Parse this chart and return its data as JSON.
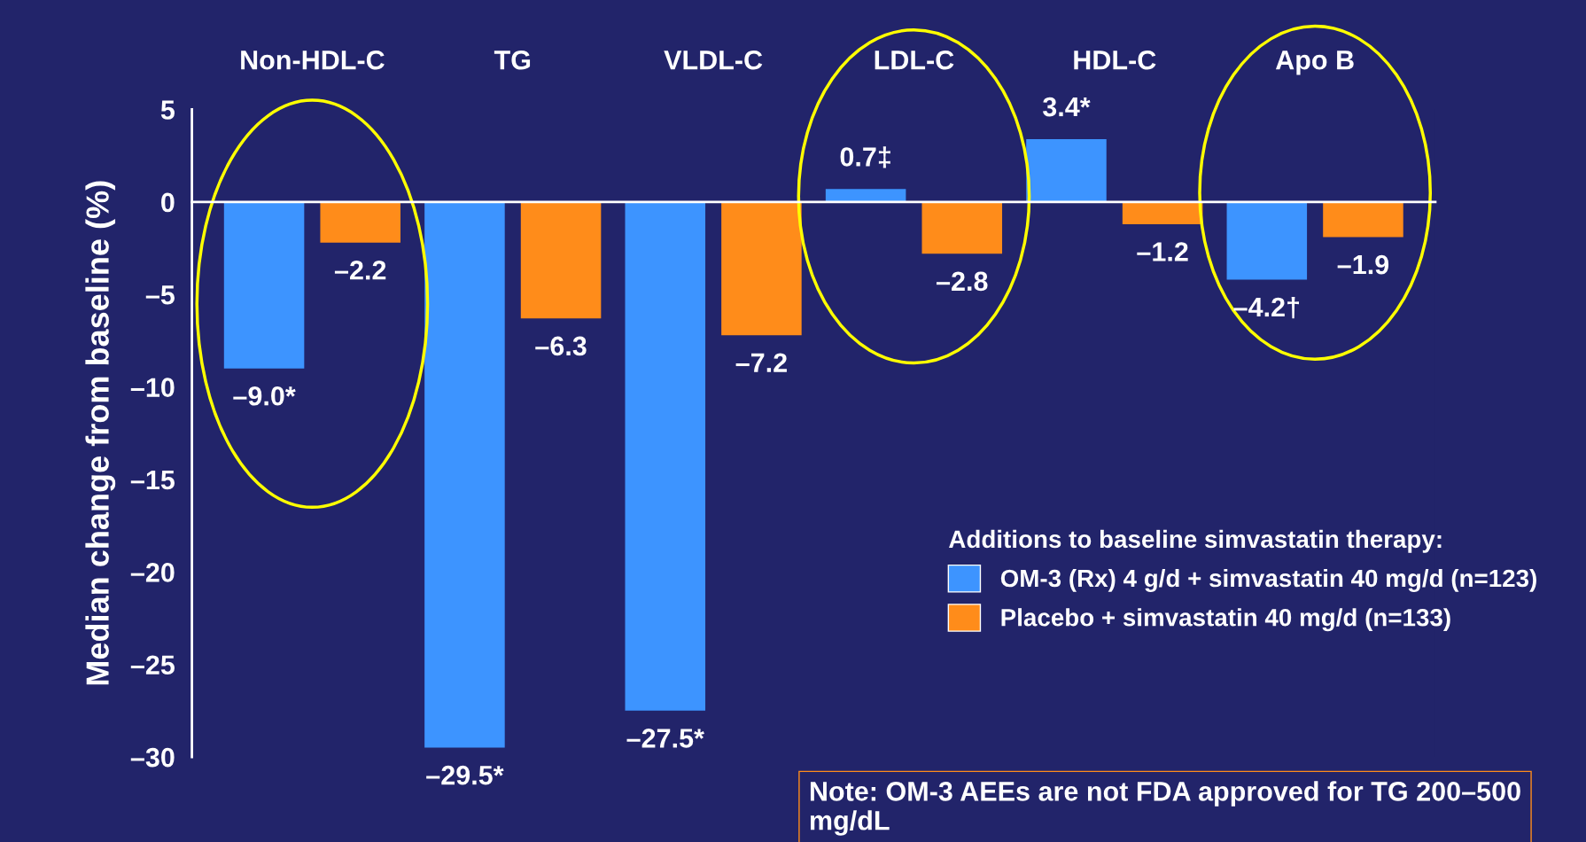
{
  "chart_data": {
    "type": "bar",
    "categories": [
      "Non-HDL-C",
      "TG",
      "VLDL-C",
      "LDL-C",
      "HDL-C",
      "Apo B"
    ],
    "ylabel": "Median change from baseline (%)",
    "legend_title": "Additions to baseline simvastatin therapy:",
    "series": [
      {
        "name": "OM-3 (Rx) 4 g/d + simvastatin 40 mg/d (n=123)",
        "color": "#3d94ff",
        "values": [
          -9.0,
          -29.5,
          -27.5,
          0.7,
          3.4,
          -4.2
        ],
        "value_labels": [
          "–9.0*",
          "–29.5*",
          "–27.5*",
          "0.7‡",
          "3.4*",
          "–4.2†"
        ]
      },
      {
        "name": "Placebo + simvastatin 40 mg/d (n=133)",
        "color": "#ff8c1a",
        "values": [
          -2.2,
          -6.3,
          -7.2,
          -2.8,
          -1.2,
          -1.9
        ],
        "value_labels": [
          "–2.2",
          "–6.3",
          "–7.2",
          "–2.8",
          "–1.2",
          "–1.9"
        ]
      }
    ],
    "ylim": [
      -30,
      5
    ],
    "yticks": [
      5,
      0,
      {
        "value": -5,
        "label": "–5"
      },
      {
        "value": -10,
        "label": "–10"
      },
      {
        "value": -15,
        "label": "–15"
      },
      {
        "value": -20,
        "label": "–20"
      },
      {
        "value": -25,
        "label": "–25"
      },
      {
        "value": -30,
        "label": "–30"
      }
    ],
    "legend": "bottom right",
    "annotations": [
      "Note: OM-3 AEEs are not FDA approved for TG 200–500 mg/dL"
    ]
  }
}
